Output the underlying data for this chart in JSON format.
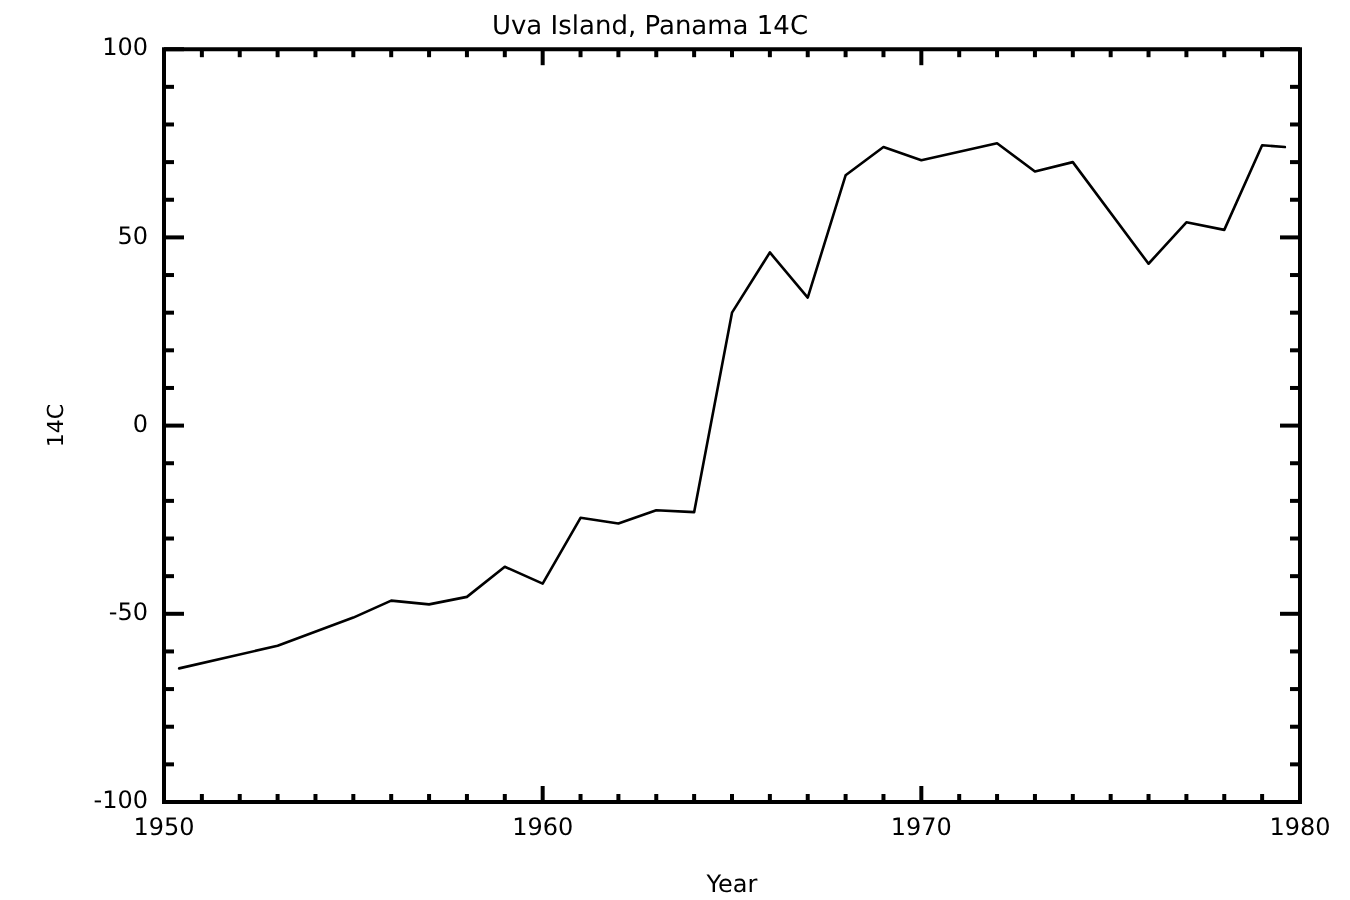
{
  "chart_data": {
    "type": "line",
    "title": "Uva Island, Panama 14C",
    "xlabel": "Year",
    "ylabel": "14C",
    "x": [
      1950.4,
      1953,
      1955,
      1956,
      1957,
      1958,
      1959,
      1960,
      1961,
      1962,
      1963,
      1964,
      1965,
      1966,
      1967,
      1968,
      1969,
      1970,
      1972,
      1973,
      1974,
      1976,
      1977,
      1978,
      1979,
      1979.6
    ],
    "values": [
      -64.5,
      -58.5,
      -51,
      -46.5,
      -47.5,
      -45.5,
      -37.5,
      -42,
      -24.5,
      -26,
      -22.5,
      -23,
      30,
      46,
      34,
      66.5,
      74,
      70.5,
      75,
      67.5,
      70,
      43,
      54,
      52,
      74.5,
      74
    ],
    "color": "#000000",
    "marker": "none",
    "line_style": "solid",
    "xlim": [
      1950,
      1980
    ],
    "xticks": [
      1950,
      {
        "value": 1951,
        "label": null
      },
      {
        "value": 1952,
        "label": null
      },
      {
        "value": 1953,
        "label": null
      },
      {
        "value": 1954,
        "label": null
      },
      {
        "value": 1955,
        "label": null
      },
      {
        "value": 1956,
        "label": null
      },
      {
        "value": 1957,
        "label": null
      },
      {
        "value": 1958,
        "label": null
      },
      {
        "value": 1959,
        "label": null
      },
      1960,
      {
        "value": 1961,
        "label": null
      },
      {
        "value": 1962,
        "label": null
      },
      {
        "value": 1963,
        "label": null
      },
      {
        "value": 1964,
        "label": null
      },
      {
        "value": 1965,
        "label": null
      },
      {
        "value": 1966,
        "label": null
      },
      {
        "value": 1967,
        "label": null
      },
      {
        "value": 1968,
        "label": null
      },
      {
        "value": 1969,
        "label": null
      },
      1970,
      {
        "value": 1971,
        "label": null
      },
      {
        "value": 1972,
        "label": null
      },
      {
        "value": 1973,
        "label": null
      },
      {
        "value": 1974,
        "label": null
      },
      {
        "value": 1975,
        "label": null
      },
      {
        "value": 1976,
        "label": null
      },
      {
        "value": 1977,
        "label": null
      },
      {
        "value": 1978,
        "label": null
      },
      {
        "value": 1979,
        "label": null
      },
      1980
    ],
    "ylim": [
      -100,
      100
    ],
    "yticks": [
      -100,
      {
        "value": -90,
        "label": null
      },
      {
        "value": -80,
        "label": null
      },
      {
        "value": -70,
        "label": null
      },
      {
        "value": -60,
        "label": null
      },
      -50,
      {
        "value": -40,
        "label": null
      },
      {
        "value": -30,
        "label": null
      },
      {
        "value": -20,
        "label": null
      },
      {
        "value": -10,
        "label": null
      },
      0,
      {
        "value": 10,
        "label": null
      },
      {
        "value": 20,
        "label": null
      },
      {
        "value": 30,
        "label": null
      },
      {
        "value": 40,
        "label": null
      },
      50,
      {
        "value": 60,
        "label": null
      },
      {
        "value": 70,
        "label": null
      },
      {
        "value": 80,
        "label": null
      },
      {
        "value": 90,
        "label": null
      },
      100
    ]
  }
}
